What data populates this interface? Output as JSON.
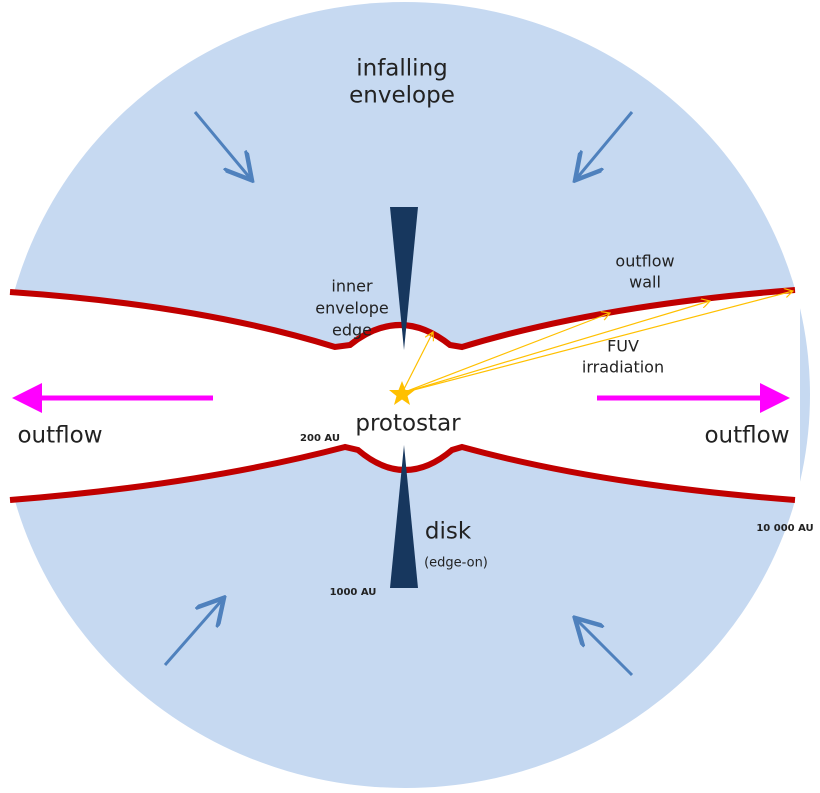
{
  "diagram": {
    "envelope_label": [
      "infalling",
      "envelope"
    ],
    "inner_edge_label": [
      "inner",
      "envelope",
      "edge"
    ],
    "outflow_wall_label": [
      "outflow",
      "wall"
    ],
    "fuv_label": [
      "FUV",
      "irradiation"
    ],
    "protostar_label": "protostar",
    "outflow_left": "outflow",
    "outflow_right": "outflow",
    "scale_200": "200 AU",
    "disk_label": "disk",
    "disk_note": "(edge-on)",
    "scale_1000": "1000 AU",
    "scale_10000": "10 000 AU"
  }
}
